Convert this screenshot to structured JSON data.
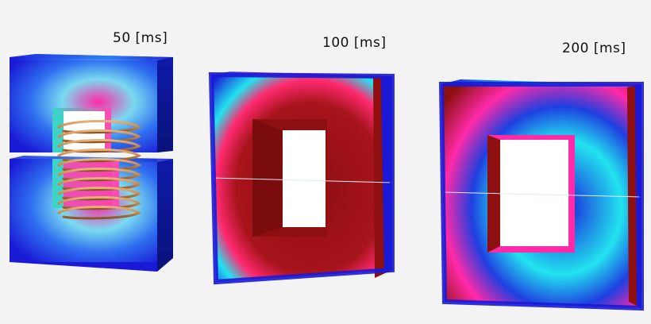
{
  "frames": [
    {
      "label": "50 [ms]"
    },
    {
      "label": "100 [ms]"
    },
    {
      "label": "200 [ms]"
    }
  ],
  "colors": {
    "background": "#f3f3f3",
    "low": "#1a1ad6",
    "mid": "#22e3ef",
    "high": "#ff2aa8",
    "saturated": "#8d0f10",
    "coil": "#c98a4b"
  }
}
